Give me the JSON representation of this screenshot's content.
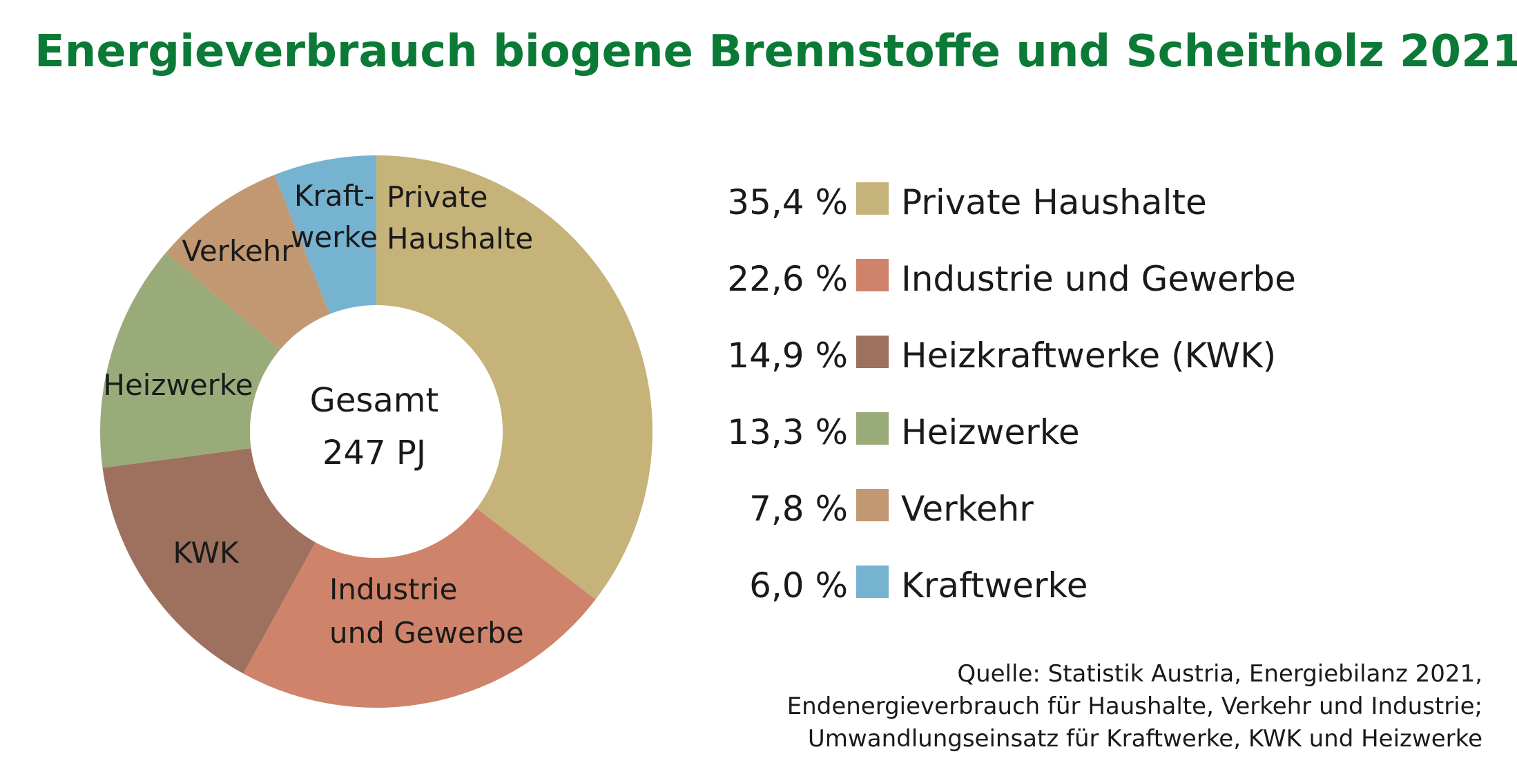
{
  "chart_data": {
    "type": "pie",
    "title": "Energieverbrauch biogene Brennstoffe und Scheitholz 2021",
    "center_label": [
      "Gesamt",
      "247 PJ"
    ],
    "slices": [
      {
        "label": "Private Haushalte",
        "chart_label": [
          "Private",
          "Haushalte"
        ],
        "value": 35.4,
        "pct_text": "35,4 %",
        "color": "#c6b37a"
      },
      {
        "label": "Industrie und Gewerbe",
        "chart_label": [
          "Industrie",
          "und Gewerbe"
        ],
        "value": 22.6,
        "pct_text": "22,6 %",
        "color": "#cf836a"
      },
      {
        "label": "Heizkraftwerke (KWK)",
        "chart_label": [
          "KWK"
        ],
        "value": 14.9,
        "pct_text": "14,9 %",
        "color": "#9e705e"
      },
      {
        "label": "Heizwerke",
        "chart_label": [
          "Heizwerke"
        ],
        "value": 13.3,
        "pct_text": "13,3 %",
        "color": "#9aab7a"
      },
      {
        "label": "Verkehr",
        "chart_label": [
          "Verkehr"
        ],
        "value": 7.8,
        "pct_text": "7,8 %",
        "color": "#c19872"
      },
      {
        "label": "Kraftwerke",
        "chart_label": [
          "Kraft-",
          "werke"
        ],
        "value": 6.0,
        "pct_text": "6,0 %",
        "color": "#76b3d0"
      }
    ],
    "legend_position": "right"
  },
  "source": [
    "Quelle: Statistik Austria, Energiebilanz 2021,",
    "Endenergieverbrauch für Haushalte, Verkehr und Industrie;",
    "Umwandlungseinsatz für Kraftwerke, KWK und Heizwerke"
  ],
  "colors": {
    "title": "#0b7a36"
  }
}
